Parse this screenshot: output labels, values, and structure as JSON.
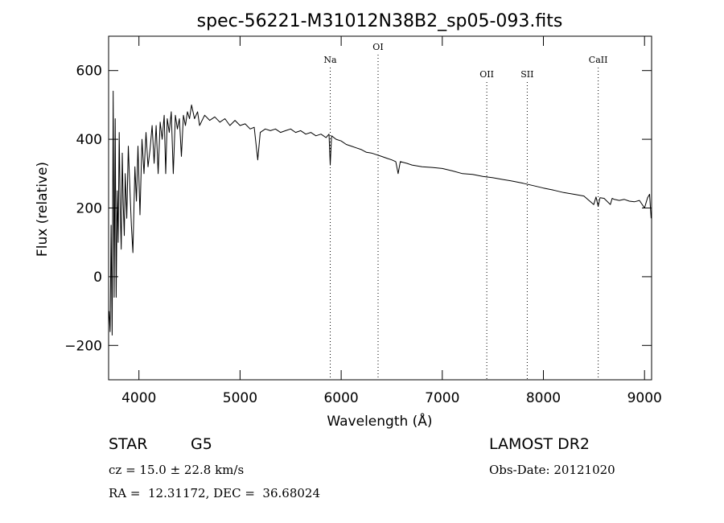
{
  "chart_data": {
    "type": "line",
    "title": "spec-56221-M31012N38B2_sp05-093.fits",
    "xlabel": "Wavelength (Å)",
    "ylabel": "Flux (relative)",
    "xlim": [
      3700,
      9070
    ],
    "ylim": [
      -300,
      700
    ],
    "xticks": [
      4000,
      5000,
      6000,
      7000,
      8000,
      9000
    ],
    "yticks": [
      -200,
      0,
      200,
      400,
      600
    ],
    "grid": false,
    "series": [
      {
        "points": [
          [
            3705,
            -100
          ],
          [
            3715,
            -160
          ],
          [
            3725,
            150
          ],
          [
            3735,
            -170
          ],
          [
            3745,
            540
          ],
          [
            3755,
            -60
          ],
          [
            3765,
            460
          ],
          [
            3775,
            -60
          ],
          [
            3785,
            250
          ],
          [
            3795,
            100
          ],
          [
            3805,
            420
          ],
          [
            3815,
            190
          ],
          [
            3825,
            80
          ],
          [
            3835,
            360
          ],
          [
            3845,
            210
          ],
          [
            3855,
            120
          ],
          [
            3865,
            300
          ],
          [
            3880,
            170
          ],
          [
            3895,
            380
          ],
          [
            3910,
            260
          ],
          [
            3925,
            150
          ],
          [
            3940,
            70
          ],
          [
            3960,
            320
          ],
          [
            3975,
            220
          ],
          [
            3990,
            380
          ],
          [
            4010,
            180
          ],
          [
            4030,
            400
          ],
          [
            4050,
            300
          ],
          [
            4070,
            420
          ],
          [
            4090,
            320
          ],
          [
            4110,
            370
          ],
          [
            4130,
            440
          ],
          [
            4150,
            330
          ],
          [
            4170,
            440
          ],
          [
            4190,
            300
          ],
          [
            4210,
            450
          ],
          [
            4230,
            400
          ],
          [
            4250,
            470
          ],
          [
            4265,
            300
          ],
          [
            4280,
            460
          ],
          [
            4300,
            420
          ],
          [
            4320,
            480
          ],
          [
            4340,
            300
          ],
          [
            4360,
            470
          ],
          [
            4380,
            430
          ],
          [
            4400,
            460
          ],
          [
            4420,
            350
          ],
          [
            4440,
            470
          ],
          [
            4460,
            440
          ],
          [
            4480,
            480
          ],
          [
            4500,
            460
          ],
          [
            4520,
            500
          ],
          [
            4550,
            460
          ],
          [
            4580,
            480
          ],
          [
            4600,
            440
          ],
          [
            4650,
            470
          ],
          [
            4700,
            455
          ],
          [
            4750,
            465
          ],
          [
            4800,
            450
          ],
          [
            4850,
            460
          ],
          [
            4900,
            440
          ],
          [
            4950,
            455
          ],
          [
            5000,
            440
          ],
          [
            5050,
            445
          ],
          [
            5100,
            430
          ],
          [
            5140,
            435
          ],
          [
            5175,
            340
          ],
          [
            5200,
            420
          ],
          [
            5250,
            430
          ],
          [
            5300,
            425
          ],
          [
            5350,
            430
          ],
          [
            5400,
            420
          ],
          [
            5450,
            425
          ],
          [
            5500,
            430
          ],
          [
            5550,
            420
          ],
          [
            5600,
            425
          ],
          [
            5650,
            415
          ],
          [
            5700,
            420
          ],
          [
            5750,
            410
          ],
          [
            5800,
            415
          ],
          [
            5850,
            405
          ],
          [
            5880,
            415
          ],
          [
            5892,
            325
          ],
          [
            5905,
            410
          ],
          [
            5950,
            400
          ],
          [
            6000,
            395
          ],
          [
            6050,
            385
          ],
          [
            6100,
            380
          ],
          [
            6150,
            375
          ],
          [
            6200,
            370
          ],
          [
            6250,
            362
          ],
          [
            6300,
            360
          ],
          [
            6350,
            355
          ],
          [
            6400,
            350
          ],
          [
            6450,
            345
          ],
          [
            6500,
            340
          ],
          [
            6540,
            335
          ],
          [
            6563,
            300
          ],
          [
            6585,
            335
          ],
          [
            6650,
            330
          ],
          [
            6700,
            325
          ],
          [
            6800,
            320
          ],
          [
            6900,
            318
          ],
          [
            7000,
            315
          ],
          [
            7100,
            308
          ],
          [
            7200,
            300
          ],
          [
            7300,
            298
          ],
          [
            7400,
            292
          ],
          [
            7500,
            288
          ],
          [
            7600,
            283
          ],
          [
            7700,
            278
          ],
          [
            7800,
            272
          ],
          [
            7900,
            265
          ],
          [
            8000,
            258
          ],
          [
            8100,
            252
          ],
          [
            8200,
            245
          ],
          [
            8300,
            240
          ],
          [
            8400,
            235
          ],
          [
            8498,
            210
          ],
          [
            8520,
            232
          ],
          [
            8542,
            205
          ],
          [
            8560,
            230
          ],
          [
            8600,
            228
          ],
          [
            8662,
            210
          ],
          [
            8680,
            228
          ],
          [
            8700,
            225
          ],
          [
            8750,
            222
          ],
          [
            8800,
            225
          ],
          [
            8850,
            220
          ],
          [
            8900,
            218
          ],
          [
            8950,
            222
          ],
          [
            9000,
            200
          ],
          [
            9030,
            230
          ],
          [
            9050,
            240
          ],
          [
            9065,
            170
          ]
        ]
      }
    ],
    "line_markers": [
      {
        "label": "Na",
        "x": 5892
      },
      {
        "label": "OI",
        "x": 6365
      },
      {
        "label": "OII",
        "x": 7440
      },
      {
        "label": "SII",
        "x": 7840
      },
      {
        "label": "CaII",
        "x": 8542
      }
    ]
  },
  "info": {
    "object_type": "STAR",
    "subclass": "G5",
    "survey": "LAMOST DR2",
    "cz": "cz = 15.0 ± 22.8 km/s",
    "obs_date": "Obs-Date: 20121020",
    "coords": "RA =  12.31172, DEC =  36.68024"
  }
}
